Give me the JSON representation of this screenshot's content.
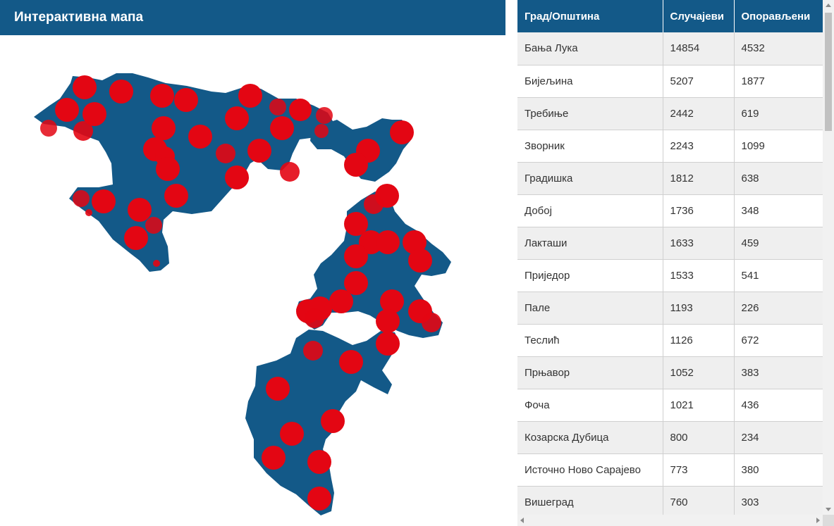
{
  "map": {
    "title": "Интерактивна мапа",
    "region_color": "#135988",
    "marker_color": "#e30613",
    "markers_count": 58
  },
  "table": {
    "headers": [
      "Град/Општина",
      "Случајеви",
      "Опорављени"
    ],
    "rows": [
      [
        "Бања Лука",
        "14854",
        "4532"
      ],
      [
        "Бијељина",
        "5207",
        "1877"
      ],
      [
        "Требиње",
        "2442",
        "619"
      ],
      [
        "Зворник",
        "2243",
        "1099"
      ],
      [
        "Градишка",
        "1812",
        "638"
      ],
      [
        "Добој",
        "1736",
        "348"
      ],
      [
        "Лакташи",
        "1633",
        "459"
      ],
      [
        "Приједор",
        "1533",
        "541"
      ],
      [
        "Пале",
        "1193",
        "226"
      ],
      [
        "Теслић",
        "1126",
        "672"
      ],
      [
        "Прњавор",
        "1052",
        "383"
      ],
      [
        "Фоча",
        "1021",
        "436"
      ],
      [
        "Козарска Дубица",
        "800",
        "234"
      ],
      [
        "Источно Ново Сарајево",
        "773",
        "380"
      ],
      [
        "Вишеград",
        "760",
        "303"
      ],
      [
        "",
        "",
        ""
      ]
    ]
  },
  "colors": {
    "header_bg": "#135988",
    "row_alt": "#efefef"
  }
}
